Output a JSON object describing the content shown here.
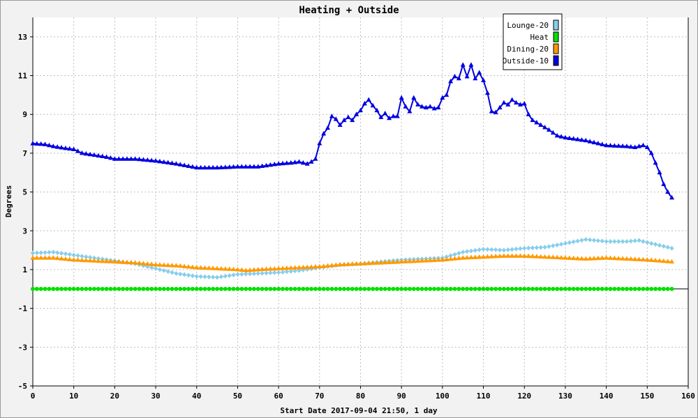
{
  "chart_data": {
    "type": "line",
    "title": "Heating + Outside",
    "xlabel": "Start Date 2017-09-04 21:50, 1 day",
    "ylabel": "Degrees",
    "xlim": [
      0,
      160
    ],
    "ylim": [
      -5,
      14
    ],
    "xticks": [
      0,
      10,
      20,
      30,
      40,
      50,
      60,
      70,
      80,
      90,
      100,
      110,
      120,
      130,
      140,
      150,
      160
    ],
    "yticks": [
      -5,
      -3,
      -1,
      1,
      3,
      5,
      7,
      9,
      11,
      13
    ],
    "grid": true,
    "legend_position": "top-right",
    "series": [
      {
        "name": "Lounge-20",
        "color": "#87ceeb",
        "marker": "diamond",
        "x": [
          0,
          5,
          10,
          15,
          20,
          25,
          30,
          35,
          40,
          45,
          50,
          55,
          60,
          65,
          70,
          75,
          80,
          85,
          90,
          95,
          100,
          105,
          110,
          115,
          120,
          125,
          130,
          135,
          140,
          145,
          148,
          152,
          156
        ],
        "y": [
          1.85,
          1.9,
          1.75,
          1.6,
          1.45,
          1.3,
          1.05,
          0.8,
          0.65,
          0.6,
          0.75,
          0.8,
          0.85,
          0.95,
          1.1,
          1.25,
          1.3,
          1.4,
          1.5,
          1.55,
          1.6,
          1.9,
          2.05,
          2.0,
          2.1,
          2.15,
          2.35,
          2.55,
          2.45,
          2.45,
          2.5,
          2.3,
          2.1
        ]
      },
      {
        "name": "Heat",
        "color": "#00e000",
        "marker": "circle",
        "x": [
          0,
          156
        ],
        "y": [
          0,
          0
        ]
      },
      {
        "name": "Dining-20",
        "color": "#ff9900",
        "marker": "triangle",
        "x": [
          0,
          5,
          10,
          15,
          20,
          25,
          30,
          35,
          40,
          45,
          50,
          52,
          55,
          60,
          65,
          70,
          75,
          80,
          85,
          90,
          95,
          100,
          105,
          110,
          115,
          120,
          125,
          130,
          135,
          140,
          145,
          150,
          156
        ],
        "y": [
          1.6,
          1.6,
          1.5,
          1.45,
          1.4,
          1.35,
          1.25,
          1.2,
          1.1,
          1.05,
          1.0,
          0.95,
          1.0,
          1.05,
          1.1,
          1.15,
          1.25,
          1.3,
          1.35,
          1.4,
          1.45,
          1.5,
          1.6,
          1.65,
          1.7,
          1.7,
          1.65,
          1.6,
          1.55,
          1.6,
          1.55,
          1.5,
          1.4
        ]
      },
      {
        "name": "Outside-10",
        "color": "#0000e0",
        "marker": "triangle",
        "x": [
          0,
          3,
          5,
          8,
          10,
          12,
          15,
          18,
          20,
          25,
          30,
          35,
          40,
          45,
          50,
          55,
          60,
          63,
          65,
          67,
          68,
          69,
          70,
          71,
          72,
          73,
          74,
          75,
          76,
          77,
          78,
          79,
          80,
          81,
          82,
          83,
          84,
          85,
          86,
          87,
          88,
          89,
          90,
          91,
          92,
          93,
          94,
          95,
          96,
          97,
          98,
          99,
          100,
          101,
          102,
          103,
          104,
          105,
          106,
          107,
          108,
          109,
          110,
          111,
          112,
          113,
          114,
          115,
          116,
          117,
          118,
          119,
          120,
          121,
          122,
          124,
          126,
          128,
          130,
          135,
          140,
          145,
          147,
          148,
          149,
          150,
          151,
          152,
          153,
          154,
          155,
          156
        ],
        "y": [
          7.5,
          7.45,
          7.35,
          7.25,
          7.2,
          7.0,
          6.9,
          6.8,
          6.7,
          6.7,
          6.6,
          6.45,
          6.25,
          6.25,
          6.3,
          6.3,
          6.45,
          6.5,
          6.55,
          6.45,
          6.55,
          6.7,
          7.5,
          8.0,
          8.3,
          8.9,
          8.75,
          8.45,
          8.7,
          8.85,
          8.7,
          9.0,
          9.2,
          9.55,
          9.75,
          9.45,
          9.2,
          8.85,
          9.05,
          8.8,
          8.9,
          8.9,
          9.85,
          9.4,
          9.15,
          9.85,
          9.5,
          9.4,
          9.35,
          9.4,
          9.3,
          9.35,
          9.85,
          10.0,
          10.7,
          10.95,
          10.85,
          11.55,
          10.95,
          11.55,
          10.85,
          11.15,
          10.75,
          10.1,
          9.15,
          9.1,
          9.35,
          9.6,
          9.5,
          9.75,
          9.6,
          9.5,
          9.55,
          9.0,
          8.7,
          8.45,
          8.2,
          7.9,
          7.8,
          7.65,
          7.4,
          7.35,
          7.3,
          7.35,
          7.4,
          7.3,
          7.0,
          6.5,
          6.0,
          5.4,
          5.0,
          4.7
        ]
      }
    ]
  }
}
